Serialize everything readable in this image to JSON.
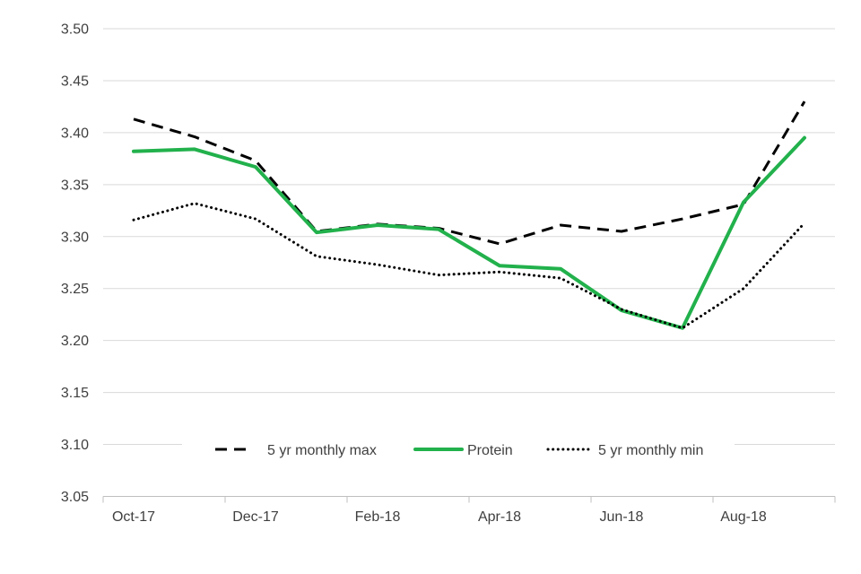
{
  "chart_data": {
    "type": "line",
    "x_categories": [
      "Oct-17",
      "Nov-17",
      "Dec-17",
      "Jan-18",
      "Feb-18",
      "Mar-18",
      "Apr-18",
      "May-18",
      "Jun-18",
      "Jul-18",
      "Aug-18",
      "Sep-18"
    ],
    "x_label_indices": [
      0,
      2,
      4,
      6,
      8,
      10
    ],
    "x_tick_labels_shown": [
      "Oct-17",
      "Dec-17",
      "Feb-18",
      "Apr-18",
      "Jun-18",
      "Aug-18"
    ],
    "y_tick_labels": [
      "3.05",
      "3.10",
      "3.15",
      "3.20",
      "3.25",
      "3.30",
      "3.35",
      "3.40",
      "3.45",
      "3.50"
    ],
    "ylim": [
      3.05,
      3.5
    ],
    "grid": true,
    "legend_position": "bottom-inside",
    "series": [
      {
        "name": "5 yr monthly max",
        "style": "dashed",
        "color": "#000000",
        "values": [
          3.413,
          3.396,
          3.373,
          3.305,
          3.312,
          3.308,
          3.293,
          3.311,
          3.305,
          3.317,
          3.331,
          3.43
        ]
      },
      {
        "name": "Protein",
        "style": "solid",
        "color": "#22B14C",
        "values": [
          3.382,
          3.384,
          3.367,
          3.304,
          3.311,
          3.307,
          3.272,
          3.269,
          3.229,
          3.212,
          3.333,
          3.395
        ]
      },
      {
        "name": "5 yr monthly min",
        "style": "dotted",
        "color": "#000000",
        "values": [
          3.316,
          3.332,
          3.317,
          3.281,
          3.273,
          3.263,
          3.266,
          3.26,
          3.23,
          3.212,
          3.25,
          3.313
        ]
      }
    ],
    "colors": {
      "background": "#FFFFFF",
      "gridline": "#D9D9D9",
      "axis_line": "#BFBFBF",
      "tick_text": "#3F3F3F",
      "series_max": "#000000",
      "series_protein": "#22B14C",
      "series_min": "#000000"
    }
  }
}
